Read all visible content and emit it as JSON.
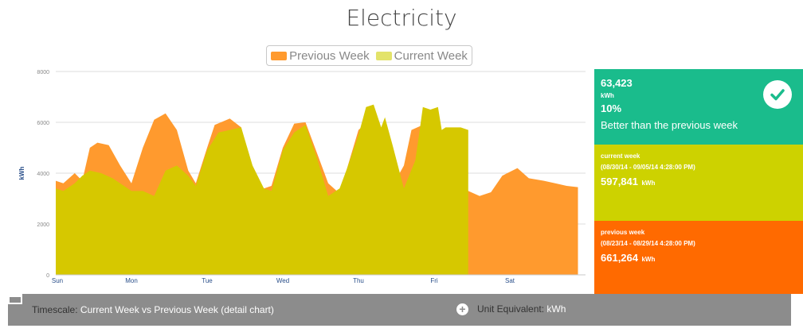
{
  "title": "Electricity",
  "legend": {
    "previous": "Previous Week",
    "current": "Current Week"
  },
  "colors": {
    "previous": "#ff9a2e",
    "current": "#d6c800",
    "current_legend": "#e3e36a",
    "panel_good": "#1abc8c",
    "panel_current": "#cdd200",
    "panel_previous": "#ff6a00",
    "footer": "#8c8c8c"
  },
  "panels": {
    "summary": {
      "value": "63,423",
      "unit": "kWh",
      "percent": "10%",
      "text": "Better than the previous week",
      "icon": "check-icon"
    },
    "current": {
      "label": "current week",
      "range": "(08/30/14 - 09/05/14 4:28:00 PM)",
      "value": "597,841",
      "unit": "kWh"
    },
    "previous": {
      "label": "previous week",
      "range": "(08/23/14 - 08/29/14 4:28:00 PM)",
      "value": "661,264",
      "unit": "kWh"
    }
  },
  "footer": {
    "timescale_label": "Timescale:",
    "timescale_value": " Current Week vs Previous Week (detail chart)",
    "unit_label": "Unit Equivalent:",
    "unit_value": " kWh"
  },
  "chart_data": {
    "type": "area",
    "ylabel": "kWh",
    "ylim": [
      0,
      8000
    ],
    "yticks": [
      0,
      2000,
      4000,
      6000,
      8000
    ],
    "xlim": [
      0,
      7
    ],
    "x_tick_labels": [
      "Sun",
      "Mon",
      "Tue",
      "Wed",
      "Thu",
      "Fri",
      "Sat"
    ],
    "grid": true,
    "legend_position": "top",
    "series": [
      {
        "name": "Previous Week",
        "x": [
          0,
          0.1,
          0.25,
          0.35,
          0.45,
          0.55,
          0.7,
          0.85,
          1.0,
          1.15,
          1.3,
          1.45,
          1.6,
          1.75,
          1.85,
          2.0,
          2.1,
          2.3,
          2.45,
          2.6,
          2.75,
          2.85,
          3.0,
          3.15,
          3.3,
          3.45,
          3.6,
          3.75,
          3.9,
          4.0,
          4.15,
          4.3,
          4.45,
          4.6,
          4.7,
          4.85,
          5.0,
          5.15,
          5.3,
          5.45,
          5.6,
          5.75,
          5.9,
          6.1,
          6.25,
          6.45,
          6.6,
          6.75,
          6.9
        ],
        "y": [
          3700,
          3600,
          4000,
          3700,
          5000,
          5200,
          5100,
          4300,
          3600,
          5000,
          6100,
          6350,
          5700,
          4100,
          3600,
          5000,
          5900,
          6150,
          5800,
          4100,
          3400,
          3500,
          5000,
          5950,
          6000,
          4800,
          3600,
          3200,
          4700,
          5700,
          6100,
          5000,
          3500,
          4300,
          5700,
          5900,
          5800,
          4200,
          3800,
          3300,
          3100,
          3250,
          3900,
          4200,
          3800,
          3700,
          3600,
          3500,
          3450
        ]
      },
      {
        "name": "Current Week",
        "x": [
          0,
          0.1,
          0.25,
          0.35,
          0.45,
          0.6,
          0.75,
          0.85,
          1.0,
          1.15,
          1.3,
          1.45,
          1.6,
          1.75,
          1.85,
          2.0,
          2.15,
          2.3,
          2.45,
          2.6,
          2.75,
          2.85,
          3.0,
          3.15,
          3.3,
          3.45,
          3.6,
          3.75,
          3.85,
          4.0,
          4.1,
          4.2,
          4.3,
          4.35,
          4.45,
          4.6,
          4.75,
          4.8,
          4.85,
          4.95,
          5.05,
          5.1,
          5.15,
          5.25,
          5.35,
          5.45
        ],
        "y": [
          3400,
          3300,
          3600,
          3900,
          4100,
          4000,
          3800,
          3600,
          3300,
          3300,
          3100,
          4100,
          4300,
          3900,
          3500,
          4900,
          5600,
          5700,
          5800,
          4300,
          3400,
          3300,
          4900,
          5600,
          5900,
          4600,
          3100,
          3400,
          4200,
          5500,
          6600,
          6700,
          5800,
          6200,
          5100,
          3400,
          4500,
          5500,
          6600,
          6500,
          6600,
          5700,
          5800,
          5800,
          5800,
          5700
        ]
      }
    ]
  }
}
